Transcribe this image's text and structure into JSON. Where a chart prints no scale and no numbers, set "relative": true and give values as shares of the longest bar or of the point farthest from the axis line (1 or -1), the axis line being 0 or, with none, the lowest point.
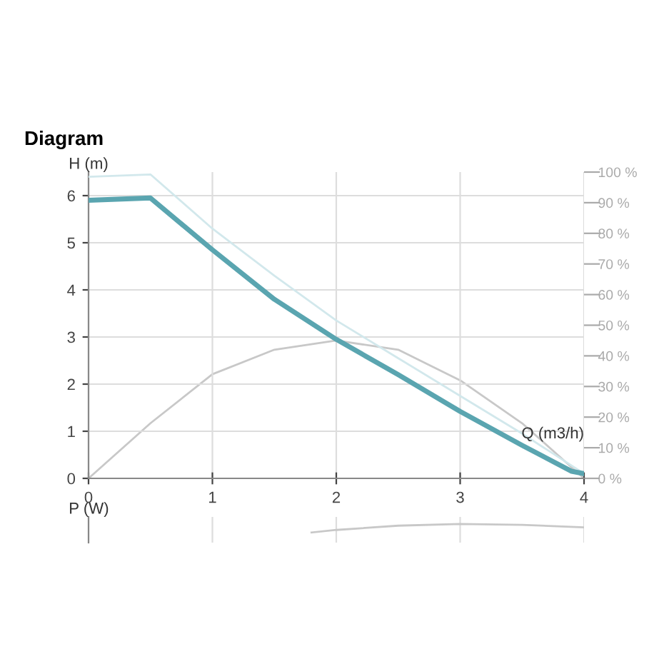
{
  "chart_data": [
    {
      "type": "line",
      "title": "Diagram",
      "xlabel": "Q (m3/h)",
      "ylabel": "H (m)",
      "xlim": [
        0,
        4
      ],
      "xticks": [
        0,
        1,
        2,
        3,
        4
      ],
      "ylim": [
        0,
        6.5
      ],
      "yticks": [
        0,
        1,
        2,
        3,
        4,
        5,
        6
      ],
      "y2lim": [
        0,
        100
      ],
      "y2ticks": [
        {
          "value": 0,
          "label": "0 %"
        },
        {
          "value": 10,
          "label": "10 %"
        },
        {
          "value": 20,
          "label": "20 %"
        },
        {
          "value": 30,
          "label": "30 %"
        },
        {
          "value": 40,
          "label": "40 %"
        },
        {
          "value": 50,
          "label": "50 %"
        },
        {
          "value": 60,
          "label": "60 %"
        },
        {
          "value": 70,
          "label": "70 %"
        },
        {
          "value": 80,
          "label": "80 %"
        },
        {
          "value": 90,
          "label": "90 %"
        },
        {
          "value": 100,
          "label": "100 %"
        }
      ],
      "grid": true,
      "marker": "none",
      "line_style": "solid",
      "series": [
        {
          "color": "#d2e8ec",
          "x": [
            0,
            0.5,
            1,
            1.5,
            2,
            2.5,
            3,
            3.5,
            4
          ],
          "values": [
            6.4,
            6.45,
            5.3,
            4.3,
            3.35,
            2.55,
            1.75,
            0.95,
            0.1
          ]
        },
        {
          "color": "#c8c8c8",
          "axis": "y2",
          "x": [
            0,
            0.5,
            1,
            1.5,
            2,
            2.5,
            3,
            3.5,
            4
          ],
          "values": [
            0,
            18,
            34,
            42,
            45,
            42,
            32,
            18,
            0
          ]
        },
        {
          "color": "#5aa5b0",
          "x": [
            0,
            0.5,
            1,
            1.5,
            2,
            2.5,
            3,
            3.5,
            3.9,
            4
          ],
          "values": [
            5.9,
            5.95,
            4.85,
            3.8,
            2.95,
            2.2,
            1.42,
            0.7,
            0.15,
            0.1
          ]
        }
      ]
    },
    {
      "type": "line",
      "ylabel": "P (W)",
      "relative": true,
      "xlim": [
        0,
        4
      ],
      "xticks": [
        0,
        1,
        2,
        3,
        4
      ],
      "tick_labels": false,
      "grid": "x",
      "marker": "none",
      "line_style": "solid",
      "series": [
        {
          "color": "#c8c8c8",
          "x": [
            1.8,
            2,
            2.5,
            3,
            3.5,
            4
          ],
          "values": [
            0,
            0.3,
            0.8,
            1,
            0.9,
            0.6
          ]
        }
      ]
    }
  ]
}
